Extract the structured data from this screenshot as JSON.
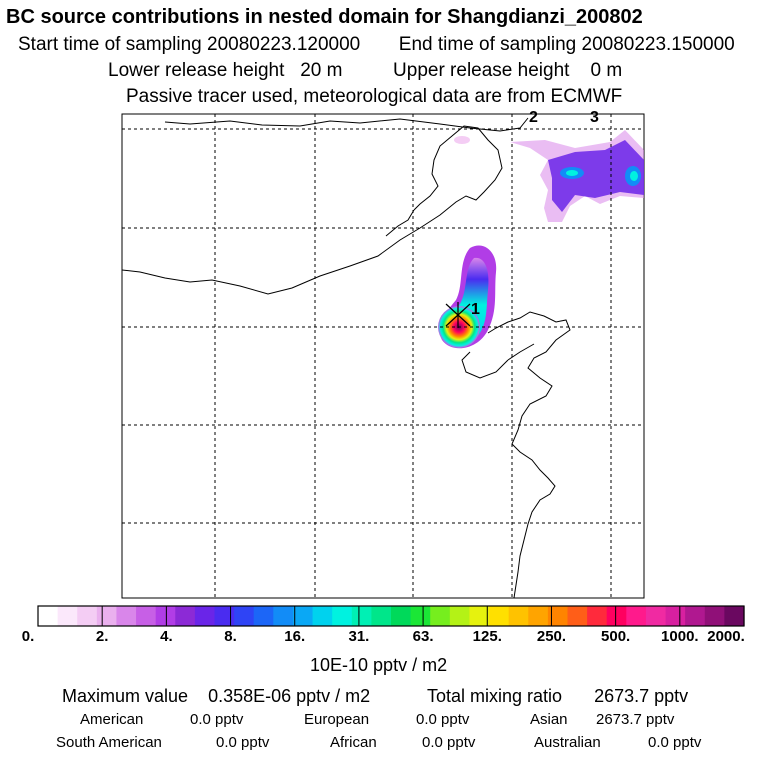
{
  "header": {
    "title": "BC  source contributions in nested domain for Shangdianzi_200802",
    "start_label": "Start time of sampling 20080223.120000",
    "end_label": "End time of sampling 20080223.150000",
    "lower_label": "Lower release height   20 m",
    "upper_label": "Upper release height    0 m",
    "tracer_line": "Passive tracer used, meteorological data are from ECMWF"
  },
  "map": {
    "markers": [
      {
        "id": "1",
        "label": "1"
      },
      {
        "id": "2",
        "label": "2"
      },
      {
        "id": "3",
        "label": "3"
      }
    ]
  },
  "colorbar": {
    "ticks": [
      "0.",
      "2.",
      "4.",
      "8.",
      "16.",
      "31.",
      "63.",
      "125.",
      "250.",
      "500.",
      "1000.",
      "2000."
    ],
    "units": "10E-10 pptv / m2",
    "colors": [
      "#ffffff",
      "#fbe8fb",
      "#f4cdf4",
      "#eab0ee",
      "#d986ea",
      "#c75fe6",
      "#b13de6",
      "#8c2ad6",
      "#6a25e8",
      "#4a2cf0",
      "#2f44f5",
      "#1c66f7",
      "#128cf7",
      "#0aa8f5",
      "#00d2ee",
      "#00f2e0",
      "#00f0b4",
      "#00e68a",
      "#00d95a",
      "#1be636",
      "#76ee1e",
      "#b4f216",
      "#e6f20e",
      "#ffe000",
      "#ffc200",
      "#ffa400",
      "#ff8400",
      "#ff5e18",
      "#ff2a3c",
      "#ff0060",
      "#ff1a8c",
      "#f02aa2",
      "#d820a0",
      "#b01890",
      "#901078",
      "#6a0860"
    ]
  },
  "footer": {
    "max_label": "Maximum value",
    "max_value": "0.358E-06 pptv / m2",
    "total_label": "Total mixing ratio",
    "total_value": "2673.7 pptv",
    "regions": [
      {
        "name": "American",
        "value": "0.0 pptv"
      },
      {
        "name": "European",
        "value": "0.0 pptv"
      },
      {
        "name": "Asian",
        "value": "2673.7 pptv"
      },
      {
        "name": "South American",
        "value": "0.0 pptv"
      },
      {
        "name": "African",
        "value": "0.0 pptv"
      },
      {
        "name": "Australian",
        "value": "0.0 pptv"
      }
    ]
  }
}
